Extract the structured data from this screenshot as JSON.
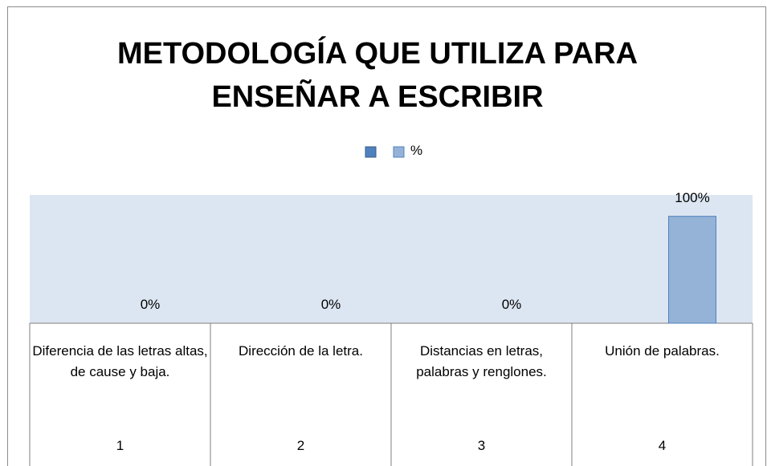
{
  "chart_data": {
    "type": "bar",
    "title": "METODOLOGÍA QUE UTILIZA PARA ENSEÑAR A ESCRIBIR",
    "categories": [
      "Diferencia de las letras altas, de cause y baja.",
      "Dirección de la letra.",
      "Distancias en letras, palabras y renglones.",
      "Unión de palabras."
    ],
    "category_codes": [
      "1",
      "2",
      "3",
      "4"
    ],
    "series": [
      {
        "name": "%",
        "color": "#95b3d7",
        "values": [
          0,
          0,
          0,
          100
        ],
        "value_labels": [
          "0%",
          "0%",
          "0%",
          "100%"
        ]
      }
    ],
    "ylim": [
      0,
      120
    ],
    "plot_background": "#dce6f2"
  }
}
